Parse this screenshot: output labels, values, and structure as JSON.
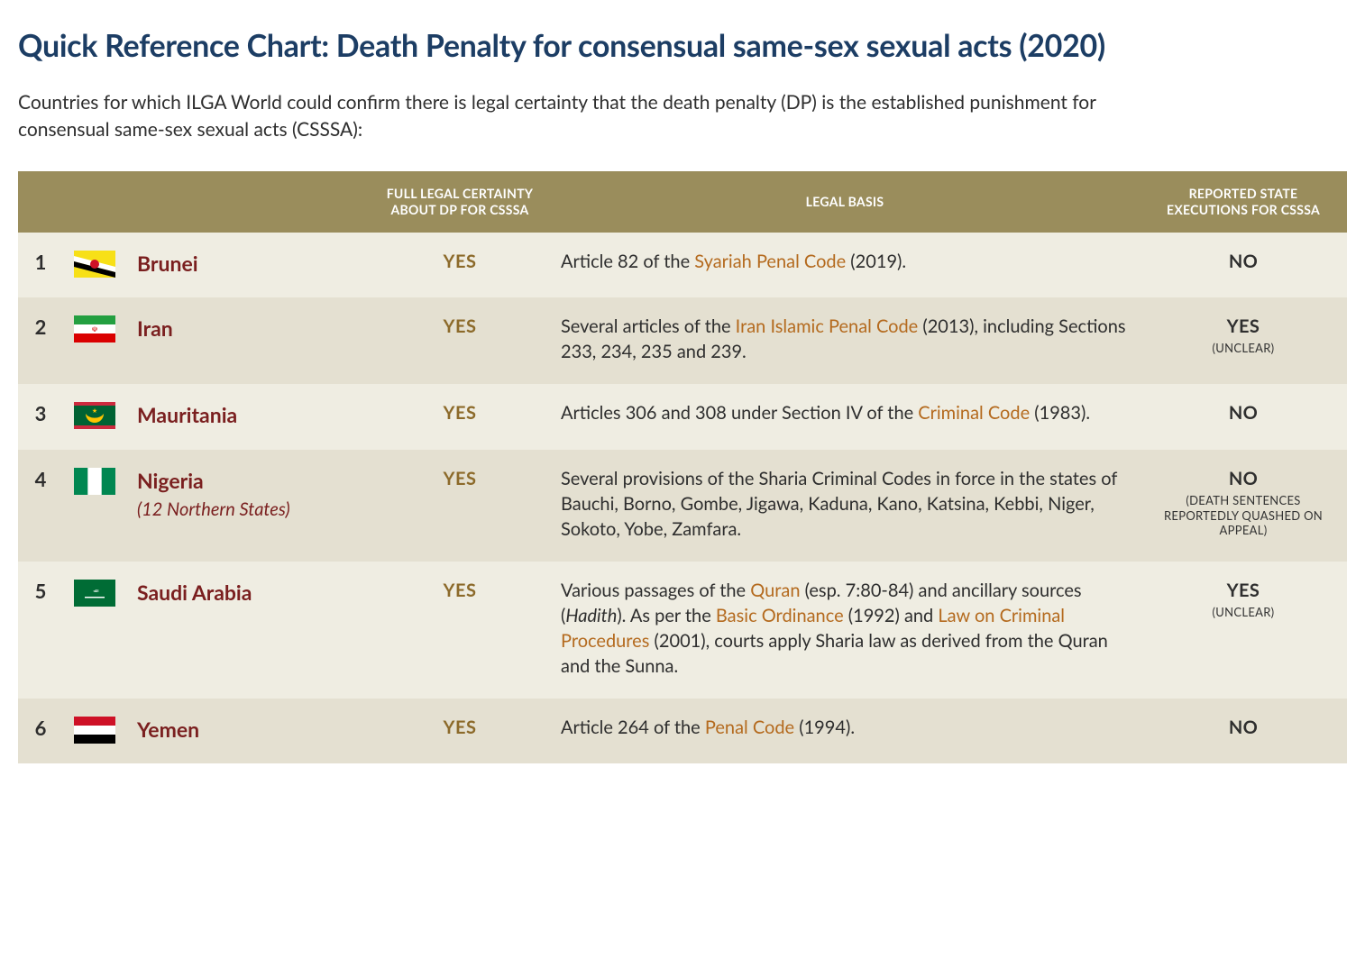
{
  "title": "Quick Reference Chart: Death Penalty for consensual same-sex sexual acts (2020)",
  "intro": "Countries for which ILGA World could confirm there is legal certainty that the death penalty (DP) is the established punishment for consensual same-sex sexual acts (CSSSA):",
  "colors": {
    "title_color": "#1c3d64",
    "header_bg": "#9a8d5c",
    "header_fg": "#ffffff",
    "row_odd_bg": "#efede2",
    "row_even_bg": "#e4e0d1",
    "country_name_color": "#7a1f1f",
    "certainty_color": "#8c6a2a",
    "link_color": "#b46a1e",
    "text_color": "#2e2e2e"
  },
  "columns": {
    "num": "",
    "flag": "",
    "country": "",
    "certainty": "FULL LEGAL CERTAINTY ABOUT DP FOR CSSSA",
    "basis": "LEGAL BASIS",
    "executions": "REPORTED STATE EXECUTIONS FOR CSSSA"
  },
  "rows": [
    {
      "num": "1",
      "flag": "brunei",
      "country": "Brunei",
      "country_sub": "",
      "certainty": "YES",
      "basis_parts": [
        {
          "t": "Article 82 of the ",
          "link": false
        },
        {
          "t": "Syariah Penal Code",
          "link": true
        },
        {
          "t": " (2019).",
          "link": false
        }
      ],
      "exec": "NO",
      "exec_sub": ""
    },
    {
      "num": "2",
      "flag": "iran",
      "country": "Iran",
      "country_sub": "",
      "certainty": "YES",
      "basis_parts": [
        {
          "t": "Several articles of the ",
          "link": false
        },
        {
          "t": "Iran Islamic Penal Code",
          "link": true
        },
        {
          "t": " (2013), including Sections 233, 234, 235 and 239.",
          "link": false
        }
      ],
      "exec": "YES",
      "exec_sub": "(UNCLEAR)"
    },
    {
      "num": "3",
      "flag": "mauritania",
      "country": "Mauritania",
      "country_sub": "",
      "certainty": "YES",
      "basis_parts": [
        {
          "t": "Articles 306 and 308 under Section IV of the ",
          "link": false
        },
        {
          "t": "Criminal Code",
          "link": true
        },
        {
          "t": " (1983).",
          "link": false
        }
      ],
      "exec": "NO",
      "exec_sub": ""
    },
    {
      "num": "4",
      "flag": "nigeria",
      "country": "Nigeria",
      "country_sub": "(12 Northern States)",
      "certainty": "YES",
      "basis_parts": [
        {
          "t": "Several provisions of the Sharia Criminal Codes in force in the states of Bauchi, Borno, Gombe, Jigawa, Kaduna, Kano, Katsina, Kebbi, Niger, Sokoto, Yobe, Zamfara.",
          "link": false
        }
      ],
      "exec": "NO",
      "exec_sub": "(DEATH SENTENCES REPORTEDLY QUASHED ON APPEAL)"
    },
    {
      "num": "5",
      "flag": "saudi",
      "country": "Saudi Arabia",
      "country_sub": "",
      "certainty": "YES",
      "basis_parts": [
        {
          "t": "Various passages of the ",
          "link": false
        },
        {
          "t": "Quran",
          "link": true
        },
        {
          "t": " (esp. 7:80-84) and ancillary sources (",
          "link": false
        },
        {
          "t": "Hadith",
          "link": false,
          "italic": true
        },
        {
          "t": "). As per the ",
          "link": false
        },
        {
          "t": "Basic Ordinance",
          "link": true
        },
        {
          "t": " (1992) and ",
          "link": false
        },
        {
          "t": "Law on Criminal Procedures",
          "link": true
        },
        {
          "t": " (2001), courts apply Sharia law as derived from the Quran and the Sunna.",
          "link": false
        }
      ],
      "exec": "YES",
      "exec_sub": "(UNCLEAR)"
    },
    {
      "num": "6",
      "flag": "yemen",
      "country": "Yemen",
      "country_sub": "",
      "certainty": "YES",
      "basis_parts": [
        {
          "t": "Article 264 of the ",
          "link": false
        },
        {
          "t": "Penal Code",
          "link": true
        },
        {
          "t": " (1994).",
          "link": false
        }
      ],
      "exec": "NO",
      "exec_sub": ""
    }
  ],
  "flags": {
    "brunei": {
      "type": "brunei"
    },
    "iran": {
      "type": "iran"
    },
    "mauritania": {
      "type": "mauritania"
    },
    "nigeria": {
      "type": "nigeria"
    },
    "saudi": {
      "type": "saudi"
    },
    "yemen": {
      "type": "yemen"
    }
  }
}
